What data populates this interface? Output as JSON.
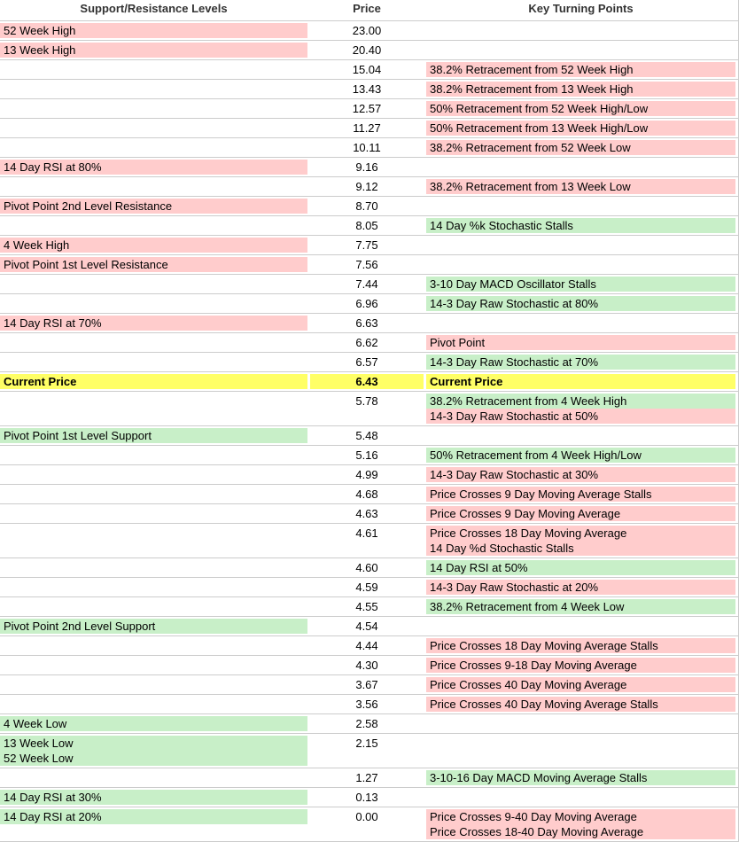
{
  "colors": {
    "resistance": "#ffcccc",
    "support": "#c8efc8",
    "current": "#ffff66",
    "separator": "#cccccc",
    "header_text": "#333333"
  },
  "table": {
    "headers": [
      "Support/Resistance Levels",
      "Price",
      "Key Turning Points"
    ],
    "current_price": "6.43",
    "rows": [
      {
        "level": {
          "lines": [
            "52 Week High"
          ],
          "color": "resistance"
        },
        "price": "23.00",
        "turning_points": []
      },
      {
        "level": {
          "lines": [
            "13 Week High"
          ],
          "color": "resistance"
        },
        "price": "20.40",
        "turning_points": []
      },
      {
        "level": null,
        "price": "15.04",
        "turning_points": [
          {
            "lines": [
              "38.2% Retracement from 52 Week High"
            ],
            "color": "resistance"
          }
        ]
      },
      {
        "level": null,
        "price": "13.43",
        "turning_points": [
          {
            "lines": [
              "38.2% Retracement from 13 Week High"
            ],
            "color": "resistance"
          }
        ]
      },
      {
        "level": null,
        "price": "12.57",
        "turning_points": [
          {
            "lines": [
              "50% Retracement from 52 Week High/Low"
            ],
            "color": "resistance"
          }
        ]
      },
      {
        "level": null,
        "price": "11.27",
        "turning_points": [
          {
            "lines": [
              "50% Retracement from 13 Week High/Low"
            ],
            "color": "resistance"
          }
        ]
      },
      {
        "level": null,
        "price": "10.11",
        "turning_points": [
          {
            "lines": [
              "38.2% Retracement from 52 Week Low"
            ],
            "color": "resistance"
          }
        ]
      },
      {
        "level": {
          "lines": [
            "14 Day RSI at 80%"
          ],
          "color": "resistance"
        },
        "price": "9.16",
        "turning_points": []
      },
      {
        "level": null,
        "price": "9.12",
        "turning_points": [
          {
            "lines": [
              "38.2% Retracement from 13 Week Low"
            ],
            "color": "resistance"
          }
        ]
      },
      {
        "level": {
          "lines": [
            "Pivot Point 2nd Level Resistance"
          ],
          "color": "resistance"
        },
        "price": "8.70",
        "turning_points": []
      },
      {
        "level": null,
        "price": "8.05",
        "turning_points": [
          {
            "lines": [
              "14 Day %k Stochastic Stalls"
            ],
            "color": "support"
          }
        ]
      },
      {
        "level": {
          "lines": [
            "4 Week High"
          ],
          "color": "resistance"
        },
        "price": "7.75",
        "turning_points": []
      },
      {
        "level": {
          "lines": [
            "Pivot Point 1st Level Resistance"
          ],
          "color": "resistance"
        },
        "price": "7.56",
        "turning_points": []
      },
      {
        "level": null,
        "price": "7.44",
        "turning_points": [
          {
            "lines": [
              "3-10 Day MACD Oscillator Stalls"
            ],
            "color": "support"
          }
        ]
      },
      {
        "level": null,
        "price": "6.96",
        "turning_points": [
          {
            "lines": [
              "14-3 Day Raw Stochastic at 80%"
            ],
            "color": "support"
          }
        ]
      },
      {
        "level": {
          "lines": [
            "14 Day RSI at 70%"
          ],
          "color": "resistance"
        },
        "price": "6.63",
        "turning_points": []
      },
      {
        "level": null,
        "price": "6.62",
        "turning_points": [
          {
            "lines": [
              "Pivot Point"
            ],
            "color": "resistance"
          }
        ]
      },
      {
        "level": null,
        "price": "6.57",
        "turning_points": [
          {
            "lines": [
              "14-3 Day Raw Stochastic at 70%"
            ],
            "color": "support"
          }
        ]
      },
      {
        "highlight": true,
        "level": {
          "lines": [
            "Current Price"
          ],
          "color": "current"
        },
        "price": "6.43",
        "turning_points": [
          {
            "lines": [
              "Current Price"
            ],
            "color": "current"
          }
        ]
      },
      {
        "level": null,
        "price": "5.78",
        "turning_points": [
          {
            "lines": [
              "38.2% Retracement from 4 Week High"
            ],
            "color": "support"
          },
          {
            "lines": [
              "14-3 Day Raw Stochastic at 50%"
            ],
            "color": "resistance"
          }
        ]
      },
      {
        "level": {
          "lines": [
            "Pivot Point 1st Level Support"
          ],
          "color": "support"
        },
        "price": "5.48",
        "turning_points": []
      },
      {
        "level": null,
        "price": "5.16",
        "turning_points": [
          {
            "lines": [
              "50% Retracement from 4 Week High/Low"
            ],
            "color": "support"
          }
        ]
      },
      {
        "level": null,
        "price": "4.99",
        "turning_points": [
          {
            "lines": [
              "14-3 Day Raw Stochastic at 30%"
            ],
            "color": "resistance"
          }
        ]
      },
      {
        "level": null,
        "price": "4.68",
        "turning_points": [
          {
            "lines": [
              "Price Crosses 9 Day Moving Average Stalls"
            ],
            "color": "resistance"
          }
        ]
      },
      {
        "level": null,
        "price": "4.63",
        "turning_points": [
          {
            "lines": [
              "Price Crosses 9 Day Moving Average"
            ],
            "color": "resistance"
          }
        ]
      },
      {
        "level": null,
        "price": "4.61",
        "turning_points": [
          {
            "lines": [
              "Price Crosses 18 Day Moving Average",
              "14 Day %d Stochastic Stalls"
            ],
            "color": "resistance"
          }
        ]
      },
      {
        "level": null,
        "price": "4.60",
        "turning_points": [
          {
            "lines": [
              "14 Day RSI at 50%"
            ],
            "color": "support"
          }
        ]
      },
      {
        "level": null,
        "price": "4.59",
        "turning_points": [
          {
            "lines": [
              "14-3 Day Raw Stochastic at 20%"
            ],
            "color": "resistance"
          }
        ]
      },
      {
        "level": null,
        "price": "4.55",
        "turning_points": [
          {
            "lines": [
              "38.2% Retracement from 4 Week Low"
            ],
            "color": "support"
          }
        ]
      },
      {
        "level": {
          "lines": [
            "Pivot Point 2nd Level Support"
          ],
          "color": "support"
        },
        "price": "4.54",
        "turning_points": []
      },
      {
        "level": null,
        "price": "4.44",
        "turning_points": [
          {
            "lines": [
              "Price Crosses 18 Day Moving Average Stalls"
            ],
            "color": "resistance"
          }
        ]
      },
      {
        "level": null,
        "price": "4.30",
        "turning_points": [
          {
            "lines": [
              "Price Crosses 9-18 Day Moving Average"
            ],
            "color": "resistance"
          }
        ]
      },
      {
        "level": null,
        "price": "3.67",
        "turning_points": [
          {
            "lines": [
              "Price Crosses 40 Day Moving Average"
            ],
            "color": "resistance"
          }
        ]
      },
      {
        "level": null,
        "price": "3.56",
        "turning_points": [
          {
            "lines": [
              "Price Crosses 40 Day Moving Average Stalls"
            ],
            "color": "resistance"
          }
        ]
      },
      {
        "level": {
          "lines": [
            "4 Week Low"
          ],
          "color": "support"
        },
        "price": "2.58",
        "turning_points": []
      },
      {
        "level": {
          "lines": [
            "13 Week Low",
            "52 Week Low"
          ],
          "color": "support"
        },
        "price": "2.15",
        "turning_points": []
      },
      {
        "level": null,
        "price": "1.27",
        "turning_points": [
          {
            "lines": [
              "3-10-16 Day MACD Moving Average Stalls"
            ],
            "color": "support"
          }
        ]
      },
      {
        "level": {
          "lines": [
            "14 Day RSI at 30%"
          ],
          "color": "support"
        },
        "price": "0.13",
        "turning_points": []
      },
      {
        "level": {
          "lines": [
            "14 Day RSI at 20%"
          ],
          "color": "support"
        },
        "price": "0.00",
        "turning_points": [
          {
            "lines": [
              "Price Crosses 9-40 Day Moving Average",
              "Price Crosses 18-40 Day Moving Average"
            ],
            "color": "resistance"
          }
        ]
      }
    ]
  }
}
